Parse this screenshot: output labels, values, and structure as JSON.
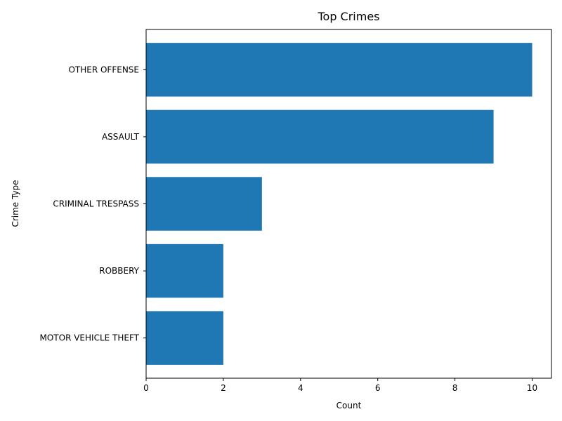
{
  "chart_data": {
    "type": "bar",
    "orientation": "horizontal",
    "title": "Top Crimes",
    "xlabel": "Count",
    "ylabel": "Crime Type",
    "categories": [
      "OTHER OFFENSE",
      "ASSAULT",
      "CRIMINAL TRESPASS",
      "ROBBERY",
      "MOTOR VEHICLE THEFT"
    ],
    "values": [
      10,
      9,
      3,
      2,
      2
    ],
    "xlim": [
      0,
      10.5
    ],
    "xticks": [
      0,
      2,
      4,
      6,
      8,
      10
    ],
    "grid": false,
    "legend": "none",
    "bar_color": "#1f77b4"
  }
}
